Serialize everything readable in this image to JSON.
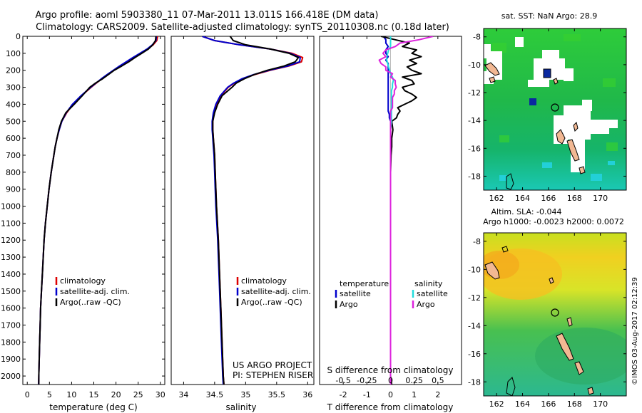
{
  "header": {
    "title_line1": "Argo profile: aoml 5903380_11 07-Mar-2011 13.011S 166.418E (DM data)",
    "title_line2": "Climatology: CARS2009. Satellite-adjusted climatology: synTS_20110308.nc (0.18d later)"
  },
  "colors": {
    "climatology": "#dd0000",
    "satellite": "#0000cc",
    "argo": "#000000",
    "argo_salinity": "#dd22dd",
    "satellite_salinity": "#22dddd",
    "map_water": "#22bb44",
    "map_land": "#f2b893",
    "map_cloud": "#ffffff"
  },
  "depth_axis": {
    "ticks": [
      0,
      100,
      200,
      300,
      400,
      500,
      600,
      700,
      800,
      900,
      1000,
      1100,
      1200,
      1300,
      1400,
      1500,
      1600,
      1700,
      1800,
      1900,
      2000
    ],
    "labels": [
      "0",
      "100",
      "200",
      "300",
      "400",
      "500",
      "600",
      "700",
      "800",
      "900",
      "1000",
      "1100",
      "1200",
      "1300",
      "1400",
      "1500",
      "1600",
      "1700",
      "1800",
      "1900",
      "2000"
    ],
    "range": [
      0,
      2050
    ]
  },
  "chart_data": [
    {
      "type": "line",
      "id": "temperature",
      "xlabel": "temperature (deg C)",
      "xlim": [
        -1,
        31
      ],
      "xticks": [
        0,
        5,
        10,
        15,
        20,
        25,
        30
      ],
      "xtick_labels": [
        "0",
        "5",
        "10",
        "15",
        "20",
        "25",
        "30"
      ],
      "depth": [
        0,
        25,
        50,
        75,
        100,
        125,
        150,
        175,
        200,
        225,
        250,
        275,
        300,
        350,
        400,
        450,
        500,
        550,
        600,
        650,
        700,
        800,
        900,
        1000,
        1100,
        1200,
        1300,
        1400,
        1500,
        1600,
        1700,
        1800,
        1900,
        2000,
        2050
      ],
      "legend": [
        "climatology",
        "satellite-adj. clim.",
        "Argo(..raw -QC)"
      ],
      "series": [
        {
          "name": "climatology",
          "color": "#dd0000",
          "values": [
            29.4,
            29.2,
            28.4,
            27.1,
            25.6,
            24.0,
            22.4,
            20.9,
            19.5,
            18.1,
            16.8,
            15.6,
            14.4,
            12.2,
            10.3,
            8.9,
            7.8,
            7.2,
            6.7,
            6.3,
            6.0,
            5.4,
            4.9,
            4.5,
            4.1,
            3.8,
            3.6,
            3.4,
            3.2,
            3.0,
            2.9,
            2.8,
            2.7,
            2.6,
            2.55
          ]
        },
        {
          "name": "satellite-adj. clim.",
          "color": "#0000cc",
          "values": [
            29.1,
            29.0,
            28.2,
            27.0,
            25.4,
            23.8,
            22.3,
            20.8,
            19.4,
            18.0,
            16.7,
            15.5,
            14.3,
            12.1,
            10.2,
            8.8,
            7.8,
            7.2,
            6.7,
            6.3,
            6.0,
            5.4,
            4.9,
            4.5,
            4.1,
            3.8,
            3.6,
            3.4,
            3.2,
            3.0,
            2.9,
            2.8,
            2.7,
            2.6,
            2.55
          ]
        },
        {
          "name": "Argo(..raw -QC)",
          "color": "#000000",
          "values": [
            29.0,
            28.9,
            28.3,
            27.3,
            25.8,
            24.3,
            22.9,
            21.3,
            19.6,
            18.3,
            17.0,
            15.4,
            14.1,
            12.4,
            10.6,
            8.7,
            7.7,
            7.1,
            6.7,
            6.3,
            6.0,
            5.4,
            4.9,
            4.5,
            4.1,
            3.8,
            3.6,
            3.4,
            3.2,
            3.0,
            2.9,
            2.8,
            2.7,
            2.6,
            2.6
          ]
        }
      ]
    },
    {
      "type": "line",
      "id": "salinity",
      "xlabel": "salinity",
      "xlim": [
        33.8,
        36.1
      ],
      "xticks": [
        34,
        34.5,
        35,
        35.5,
        36
      ],
      "xtick_labels": [
        "34",
        "34.5",
        "35",
        "35.5",
        "36"
      ],
      "depth": [
        0,
        25,
        50,
        75,
        100,
        125,
        150,
        175,
        200,
        225,
        250,
        275,
        300,
        350,
        400,
        450,
        500,
        550,
        600,
        650,
        700,
        800,
        900,
        1000,
        1200,
        1400,
        1600,
        1800,
        2000,
        2050
      ],
      "legend": [
        "climatology",
        "satellite-adj. clim.",
        "Argo(..raw -QC)"
      ],
      "annotation": [
        "US ARGO PROJECT",
        "PI: STEPHEN RISER"
      ],
      "series": [
        {
          "name": "climatology",
          "color": "#dd0000",
          "values": [
            34.3,
            34.5,
            34.9,
            35.4,
            35.75,
            35.92,
            35.9,
            35.7,
            35.4,
            35.15,
            34.95,
            34.82,
            34.72,
            34.6,
            34.53,
            34.49,
            34.47,
            34.47,
            34.48,
            34.49,
            34.5,
            34.51,
            34.52,
            34.53,
            34.56,
            34.58,
            34.6,
            34.62,
            34.64,
            34.65
          ]
        },
        {
          "name": "satellite-adj. clim.",
          "color": "#0000cc",
          "values": [
            34.3,
            34.5,
            34.9,
            35.4,
            35.72,
            35.88,
            35.87,
            35.68,
            35.38,
            35.13,
            34.94,
            34.81,
            34.71,
            34.59,
            34.52,
            34.48,
            34.46,
            34.46,
            34.47,
            34.48,
            34.49,
            34.5,
            34.51,
            34.52,
            34.55,
            34.57,
            34.59,
            34.61,
            34.63,
            34.64
          ]
        },
        {
          "name": "Argo(..raw -QC)",
          "color": "#000000",
          "values": [
            34.75,
            34.8,
            35.0,
            35.4,
            35.7,
            35.85,
            35.8,
            35.62,
            35.35,
            35.14,
            34.98,
            34.85,
            34.78,
            34.62,
            34.55,
            34.5,
            34.47,
            34.47,
            34.48,
            34.49,
            34.5,
            34.51,
            34.52,
            34.53,
            34.56,
            34.58,
            34.6,
            34.62,
            34.64,
            34.65
          ]
        }
      ]
    },
    {
      "type": "line",
      "id": "difference",
      "xlabel_top": "S difference from climatology",
      "xticks_top": [
        -0.5,
        -0.25,
        0,
        0.25,
        0.5
      ],
      "xtick_labels_top": [
        "-0.5",
        "-0.25",
        "0",
        "0.25",
        "0.5"
      ],
      "xlabel": "T difference from climatology",
      "xlim": [
        -3,
        3
      ],
      "xticks": [
        -2,
        -1,
        0,
        1,
        2
      ],
      "xtick_labels": [
        "-2",
        "-1",
        "0",
        "1",
        "2"
      ],
      "legend_groups": [
        {
          "heading": "temperature",
          "items": [
            "satellite",
            "Argo"
          ]
        },
        {
          "heading": "salinity",
          "items": [
            "satellite",
            "Argo"
          ]
        }
      ],
      "depth": [
        0,
        20,
        40,
        60,
        80,
        100,
        120,
        140,
        160,
        180,
        200,
        220,
        240,
        260,
        280,
        300,
        320,
        340,
        360,
        380,
        400,
        420,
        440,
        460,
        480,
        500,
        550,
        600,
        650,
        700,
        800,
        900,
        1000,
        1200,
        1400,
        1600,
        1800,
        2000,
        2050
      ],
      "series": [
        {
          "name": "temperature satellite",
          "color": "#0000cc",
          "values": [
            -0.3,
            -0.2,
            -0.2,
            -0.1,
            -0.2,
            -0.2,
            -0.1,
            -0.2,
            -0.1,
            -0.1,
            -0.1,
            -0.1,
            -0.1,
            -0.1,
            -0.1,
            -0.1,
            -0.1,
            -0.1,
            -0.1,
            -0.1,
            -0.1,
            -0.1,
            -0.1,
            -0.05,
            -0.05,
            0,
            0,
            0,
            0,
            0,
            0,
            0,
            0,
            0,
            0,
            0,
            0,
            0,
            0
          ]
        },
        {
          "name": "temperature Argo",
          "color": "#000000",
          "values": [
            -0.4,
            0.2,
            0.8,
            0.5,
            1.1,
            0.9,
            1.3,
            0.8,
            1.1,
            0.7,
            0.9,
            1.3,
            0.5,
            0.9,
            1.0,
            0.5,
            0.6,
            0.9,
            1.1,
            0.9,
            0.6,
            0.3,
            0.4,
            0.3,
            0.25,
            0.05,
            0.1,
            0.05,
            0.05,
            0.02,
            0,
            0,
            0,
            0,
            0,
            0,
            0,
            0,
            0.05
          ]
        },
        {
          "name": "salinity satellite",
          "color": "#22dddd",
          "values": [
            0,
            0,
            0,
            0,
            -0.02,
            -0.03,
            -0.04,
            -0.04,
            -0.03,
            -0.02,
            -0.01,
            0,
            0.02,
            0.03,
            0.02,
            0.02,
            0.01,
            0.01,
            0.01,
            0.01,
            0.01,
            0.01,
            0.01,
            0.01,
            0.01,
            0.01,
            0,
            0,
            0,
            0,
            0,
            0,
            0,
            0,
            0,
            0,
            0,
            0,
            0
          ]
        },
        {
          "name": "salinity Argo",
          "color": "#dd22dd",
          "values": [
            0.45,
            0.3,
            0.1,
            0.05,
            -0.05,
            -0.08,
            -0.05,
            -0.12,
            -0.1,
            -0.05,
            -0.05,
            0.02,
            0,
            0.05,
            0.05,
            0.06,
            0.04,
            0.04,
            0.02,
            0.02,
            0.02,
            0.02,
            0,
            0,
            0,
            0,
            0,
            0,
            0,
            0,
            0,
            0,
            0,
            0,
            0,
            0,
            0,
            0,
            0
          ]
        }
      ]
    }
  ],
  "maps": [
    {
      "title": "sat. SST: NaN Argo: 28.9",
      "lat_ticks": [
        "-8",
        "-10",
        "-12",
        "-14",
        "-16",
        "-18"
      ],
      "lon_ticks": [
        "162",
        "164",
        "166",
        "168",
        "170"
      ]
    },
    {
      "title_line1": "Altim. SLA: -0.044",
      "title_line2": "Argo h1000: -0.0023 h2000: 0.0072",
      "lat_ticks": [
        "-8",
        "-10",
        "-12",
        "-14",
        "-16",
        "-18"
      ],
      "lon_ticks": [
        "162",
        "164",
        "166",
        "168",
        "170"
      ]
    }
  ],
  "footer": {
    "stamp": "©IMOS 03-Aug-2017 02:12:39"
  }
}
